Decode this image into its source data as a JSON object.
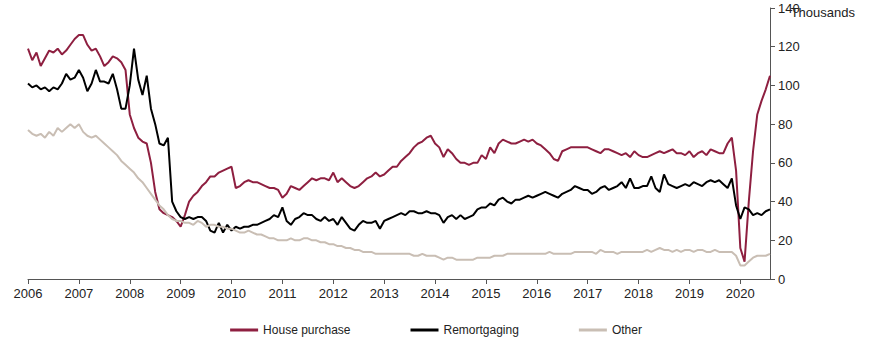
{
  "chart_data": {
    "type": "line",
    "y_label": "Thousands",
    "categories": [
      "2006",
      null,
      null,
      null,
      null,
      null,
      null,
      null,
      null,
      null,
      null,
      null,
      "2007",
      null,
      null,
      null,
      null,
      null,
      null,
      null,
      null,
      null,
      null,
      null,
      "2008",
      null,
      null,
      null,
      null,
      null,
      null,
      null,
      null,
      null,
      null,
      null,
      "2009",
      null,
      null,
      null,
      null,
      null,
      null,
      null,
      null,
      null,
      null,
      null,
      "2010",
      null,
      null,
      null,
      null,
      null,
      null,
      null,
      null,
      null,
      null,
      null,
      "2011",
      null,
      null,
      null,
      null,
      null,
      null,
      null,
      null,
      null,
      null,
      null,
      "2012",
      null,
      null,
      null,
      null,
      null,
      null,
      null,
      null,
      null,
      null,
      null,
      "2013",
      null,
      null,
      null,
      null,
      null,
      null,
      null,
      null,
      null,
      null,
      null,
      "2014",
      null,
      null,
      null,
      null,
      null,
      null,
      null,
      null,
      null,
      null,
      null,
      "2015",
      null,
      null,
      null,
      null,
      null,
      null,
      null,
      null,
      null,
      null,
      null,
      "2016",
      null,
      null,
      null,
      null,
      null,
      null,
      null,
      null,
      null,
      null,
      null,
      "2017",
      null,
      null,
      null,
      null,
      null,
      null,
      null,
      null,
      null,
      null,
      null,
      "2018",
      null,
      null,
      null,
      null,
      null,
      null,
      null,
      null,
      null,
      null,
      null,
      "2019",
      null,
      null,
      null,
      null,
      null,
      null,
      null,
      null,
      null,
      null,
      null,
      "2020",
      null,
      null,
      null,
      null,
      null,
      null,
      null
    ],
    "series": [
      {
        "name": "House purchase",
        "color": "#8e1f40",
        "values": [
          119,
          113,
          117,
          110,
          114,
          118,
          117,
          119,
          116,
          118,
          121,
          124,
          126,
          126,
          121,
          118,
          119,
          115,
          110,
          112,
          115,
          114,
          112,
          108,
          85,
          78,
          73,
          71,
          70,
          60,
          45,
          36,
          34,
          33,
          32,
          30,
          27,
          33,
          40,
          43,
          45,
          48,
          50,
          53,
          53,
          55,
          56,
          57,
          58,
          47,
          48,
          50,
          51,
          50,
          50,
          49,
          48,
          47,
          47,
          46,
          42,
          44,
          48,
          47,
          46,
          48,
          50,
          52,
          51,
          52,
          52,
          51,
          55,
          50,
          52,
          50,
          48,
          47,
          48,
          50,
          52,
          53,
          55,
          53,
          54,
          56,
          58,
          58,
          61,
          63,
          65,
          68,
          70,
          71,
          73,
          74,
          70,
          68,
          63,
          67,
          65,
          62,
          60,
          60,
          59,
          60,
          60,
          64,
          62,
          68,
          65,
          70,
          72,
          71,
          70,
          70,
          71,
          72,
          71,
          72,
          70,
          69,
          67,
          65,
          62,
          61,
          66,
          67,
          68,
          68,
          68,
          68,
          68,
          67,
          66,
          65,
          67,
          67,
          66,
          65,
          64,
          65,
          63,
          66,
          64,
          63,
          63,
          64,
          65,
          66,
          65,
          66,
          67,
          65,
          65,
          64,
          66,
          63,
          65,
          66,
          64,
          67,
          66,
          65,
          65,
          70,
          73,
          56,
          16,
          9,
          40,
          66,
          85,
          92,
          98,
          105
        ]
      },
      {
        "name": "Remortgaging",
        "color": "#000000",
        "values": [
          101,
          99,
          100,
          98,
          99,
          97,
          99,
          98,
          101,
          106,
          103,
          104,
          108,
          104,
          97,
          101,
          108,
          102,
          102,
          101,
          106,
          98,
          88,
          88,
          100,
          119,
          103,
          95,
          105,
          88,
          80,
          70,
          69,
          73,
          40,
          35,
          32,
          31,
          32,
          31,
          32,
          32,
          30,
          25,
          24,
          29,
          24,
          28,
          25,
          27,
          26,
          27,
          27,
          28,
          28,
          29,
          30,
          31,
          33,
          32,
          37,
          30,
          28,
          31,
          32,
          34,
          33,
          33,
          31,
          30,
          32,
          30,
          31,
          28,
          32,
          29,
          26,
          25,
          28,
          30,
          29,
          29,
          30,
          26,
          30,
          31,
          32,
          33,
          34,
          33,
          35,
          35,
          34,
          34,
          35,
          34,
          34,
          33,
          29,
          32,
          33,
          31,
          33,
          31,
          32,
          33,
          36,
          37,
          37,
          39,
          38,
          41,
          42,
          40,
          39,
          41,
          41,
          42,
          43,
          42,
          43,
          44,
          45,
          44,
          43,
          42,
          44,
          45,
          46,
          48,
          47,
          46,
          46,
          44,
          45,
          47,
          48,
          46,
          47,
          48,
          50,
          47,
          52,
          47,
          47,
          48,
          48,
          53,
          47,
          45,
          54,
          49,
          48,
          47,
          48,
          49,
          48,
          50,
          49,
          48,
          50,
          51,
          50,
          51,
          49,
          47,
          52,
          38,
          31,
          37,
          36,
          33,
          34,
          33,
          35,
          36
        ]
      },
      {
        "name": "Other",
        "color": "#c9beb4",
        "values": [
          77,
          75,
          74,
          75,
          73,
          76,
          74,
          78,
          76,
          78,
          80,
          78,
          80,
          76,
          74,
          73,
          74,
          72,
          70,
          68,
          66,
          64,
          61,
          59,
          57,
          55,
          52,
          50,
          47,
          44,
          41,
          38,
          36,
          33,
          31,
          30,
          30,
          29,
          29,
          28,
          30,
          29,
          27,
          28,
          28,
          27,
          27,
          26,
          26,
          25,
          24,
          24,
          25,
          24,
          23,
          23,
          22,
          21,
          21,
          20,
          20,
          20,
          21,
          20,
          20,
          21,
          21,
          20,
          20,
          19,
          19,
          18,
          18,
          17,
          17,
          16,
          16,
          15,
          15,
          14,
          14,
          14,
          13,
          13,
          13,
          13,
          13,
          13,
          13,
          13,
          13,
          12,
          12,
          13,
          12,
          12,
          12,
          11,
          10,
          11,
          11,
          10,
          10,
          10,
          10,
          10,
          11,
          11,
          11,
          11,
          12,
          12,
          12,
          13,
          13,
          13,
          13,
          13,
          13,
          13,
          13,
          13,
          13,
          14,
          13,
          13,
          13,
          13,
          13,
          14,
          14,
          14,
          14,
          14,
          13,
          15,
          14,
          14,
          14,
          13,
          14,
          14,
          14,
          14,
          14,
          14,
          15,
          14,
          15,
          16,
          15,
          15,
          14,
          15,
          14,
          15,
          15,
          14,
          15,
          15,
          14,
          14,
          15,
          14,
          14,
          14,
          14,
          12,
          7,
          7,
          9,
          11,
          12,
          12,
          12,
          13
        ]
      }
    ],
    "ylim": [
      0,
      140
    ],
    "yticks": [
      0,
      20,
      40,
      60,
      80,
      100,
      120,
      140
    ],
    "grid": false,
    "legend": "bottom"
  }
}
